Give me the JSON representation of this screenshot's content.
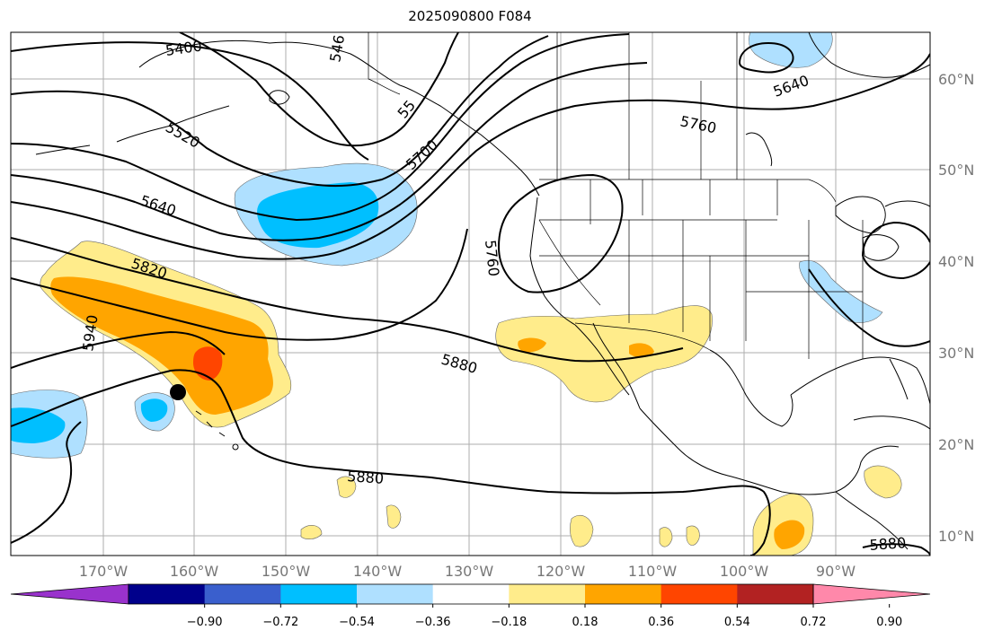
{
  "title": "2025090800 F084",
  "lat_labels": [
    "60°N",
    "50°N",
    "40°N",
    "30°N",
    "20°N",
    "10°N"
  ],
  "lon_labels": [
    "170°W",
    "160°W",
    "150°W",
    "140°W",
    "130°W",
    "120°W",
    "110°W",
    "100°W",
    "90°W"
  ],
  "contour_labels": [
    "5400",
    "546",
    "5520",
    "55",
    "5640",
    "5700",
    "5760",
    "5640",
    "5820",
    "5760",
    "5940",
    "5880",
    "5880",
    "5880"
  ],
  "colorbar": {
    "ticks": [
      "−0.90",
      "−0.72",
      "−0.54",
      "−0.36",
      "−0.18",
      "0.18",
      "0.36",
      "0.54",
      "0.72",
      "0.90"
    ],
    "colors": [
      "#9932cc",
      "#00008b",
      "#3a5fcd",
      "#00bfff",
      "#afe0ff",
      "#ffffff",
      "#ffec8b",
      "#ffa500",
      "#ff4500",
      "#b22222",
      "#ff88aa"
    ]
  },
  "colors": {
    "pos_light": "#ffec8b",
    "pos_mid": "#ffa500",
    "pos_strong": "#ff4500",
    "neg_light": "#afe0ff",
    "neg_mid": "#00bfff"
  }
}
